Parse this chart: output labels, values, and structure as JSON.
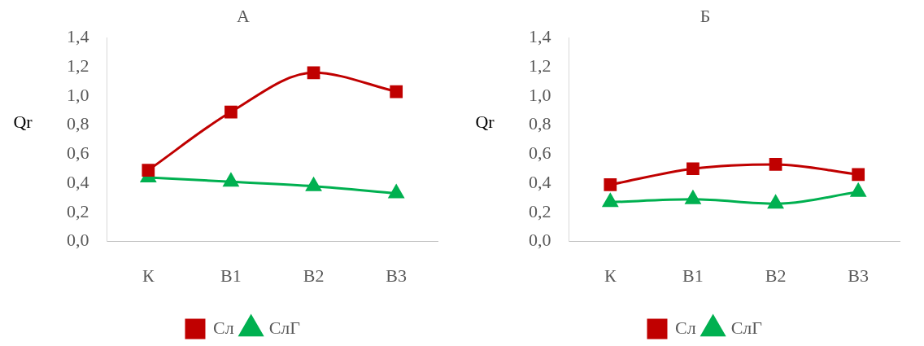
{
  "chart_data": [
    {
      "type": "line",
      "title": "А",
      "ylabel": "Qr",
      "categories": [
        "К",
        "В1",
        "В2",
        "В3"
      ],
      "series": [
        {
          "name": "Сл",
          "color": "#c00000",
          "marker": "square",
          "values": [
            0.49,
            0.89,
            1.16,
            1.03
          ]
        },
        {
          "name": "СлГ",
          "color": "#00b050",
          "marker": "triangle",
          "values": [
            0.44,
            0.41,
            0.38,
            0.33
          ]
        }
      ],
      "ylim": [
        0,
        1.4
      ],
      "yticks": [
        {
          "value": 0,
          "label": "0,0"
        },
        {
          "value": 0.2,
          "label": "0,2"
        },
        {
          "value": 0.4,
          "label": "0,4"
        },
        {
          "value": 0.6,
          "label": "0,6"
        },
        {
          "value": 0.8,
          "label": "0,8"
        },
        {
          "value": 1,
          "label": "1,0"
        },
        {
          "value": 1.2,
          "label": "1,2"
        },
        {
          "value": 1.4,
          "label": "1,4"
        }
      ],
      "grid": false,
      "legend": "bottom",
      "line_style": "solid"
    },
    {
      "type": "line",
      "title": "Б",
      "ylabel": "Qr",
      "categories": [
        "К",
        "В1",
        "В2",
        "В3"
      ],
      "series": [
        {
          "name": "Сл",
          "color": "#c00000",
          "marker": "square",
          "values": [
            0.39,
            0.5,
            0.53,
            0.46
          ]
        },
        {
          "name": "СлГ",
          "color": "#00b050",
          "marker": "triangle",
          "values": [
            0.27,
            0.29,
            0.26,
            0.34
          ]
        }
      ],
      "ylim": [
        0,
        1.4
      ],
      "yticks": [
        {
          "value": 0,
          "label": "0,0"
        },
        {
          "value": 0.2,
          "label": "0,2"
        },
        {
          "value": 0.4,
          "label": "0,4"
        },
        {
          "value": 0.6,
          "label": "0,6"
        },
        {
          "value": 0.8,
          "label": "0,8"
        },
        {
          "value": 1,
          "label": "1,0"
        },
        {
          "value": 1.2,
          "label": "1,2"
        },
        {
          "value": 1.4,
          "label": "1,4"
        }
      ],
      "grid": false,
      "legend": "bottom",
      "line_style": "solid"
    }
  ]
}
